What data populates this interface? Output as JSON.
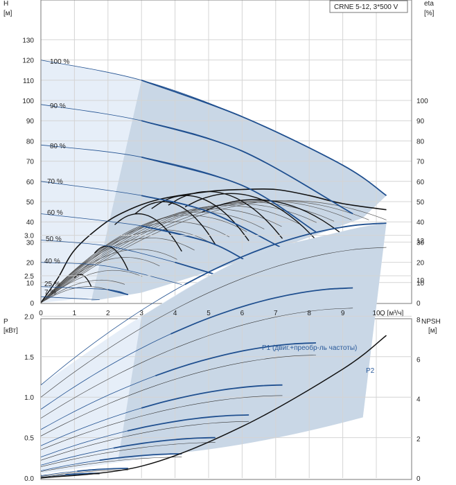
{
  "chart_data": [
    {
      "type": "line",
      "title": "CRNE 5-12, 3*500 V",
      "left_axis": {
        "name": "H",
        "unit": "[м]",
        "range": [
          0,
          140
        ],
        "ticks": [
          "0",
          "10",
          "20",
          "30",
          "40",
          "50",
          "60",
          "70",
          "80",
          "90",
          "100",
          "110",
          "120",
          "130"
        ]
      },
      "right_axis": {
        "name": "eta",
        "unit": "[%]",
        "range": [
          0,
          140
        ],
        "ticks": [
          "0",
          "10",
          "20",
          "30",
          "40",
          "50",
          "60",
          "70",
          "80",
          "90",
          "100"
        ]
      },
      "x_axis": {
        "label": "Q [м³/ч]",
        "range": [
          0,
          11
        ],
        "ticks": [
          "0",
          "1",
          "2",
          "3",
          "4",
          "5",
          "6",
          "7",
          "8",
          "9",
          "10"
        ]
      },
      "grid": true,
      "operating_area_color": "#c9d7e6",
      "extended_area_color": "#e6eef8",
      "curve_color": "#1f4f8f",
      "speed_labels": [
        "100 %",
        "90 %",
        "80 %",
        "70 %",
        "60 %",
        "50 %",
        "40 %",
        "25 %",
        "7 %"
      ],
      "head_curves": [
        {
          "speed": "100 %",
          "points": [
            [
              0,
              120
            ],
            [
              3,
              110
            ],
            [
              6,
              92
            ],
            [
              9,
              68
            ],
            [
              10.3,
              53
            ]
          ]
        },
        {
          "speed": "90 %",
          "points": [
            [
              0,
              98
            ],
            [
              3,
              90
            ],
            [
              6,
              75
            ],
            [
              9.3,
              44
            ]
          ]
        },
        {
          "speed": "80 %",
          "points": [
            [
              0,
              78
            ],
            [
              3,
              72
            ],
            [
              6,
              58
            ],
            [
              8.2,
              35
            ]
          ]
        },
        {
          "speed": "70 %",
          "points": [
            [
              0,
              60
            ],
            [
              3,
              53
            ],
            [
              5,
              45
            ],
            [
              7.2,
              27
            ]
          ]
        },
        {
          "speed": "60 %",
          "points": [
            [
              0,
              44
            ],
            [
              3,
              38
            ],
            [
              5,
              30
            ],
            [
              6.2,
              20
            ]
          ]
        },
        {
          "speed": "50 %",
          "points": [
            [
              0,
              31
            ],
            [
              2,
              28
            ],
            [
              4,
              20
            ],
            [
              5.2,
              14
            ]
          ]
        },
        {
          "speed": "40 %",
          "points": [
            [
              0,
              20
            ],
            [
              2,
              18
            ],
            [
              4.2,
              9
            ]
          ]
        },
        {
          "speed": "25 %",
          "points": [
            [
              0,
              8
            ],
            [
              2,
              6.5
            ],
            [
              2.6,
              4
            ]
          ]
        },
        {
          "speed": "7 %",
          "points": [
            [
              0,
              3
            ],
            [
              1.75,
              1.5
            ]
          ]
        }
      ],
      "efficiency_envelope": [
        [
          0,
          0
        ],
        [
          0.5,
          12
        ],
        [
          1,
          26
        ],
        [
          1.8,
          38
        ],
        [
          2.5,
          45
        ],
        [
          3.5,
          51
        ],
        [
          5,
          55
        ],
        [
          6,
          56
        ],
        [
          7,
          56
        ],
        [
          8,
          53
        ],
        [
          9,
          49
        ],
        [
          10.3,
          46
        ]
      ],
      "efficiency_curves_peak": [
        63,
        63,
        63,
        62,
        61,
        60,
        58,
        56,
        54,
        50,
        45,
        40,
        33,
        28,
        20,
        14,
        10
      ]
    },
    {
      "type": "line",
      "left_axis": {
        "name": "P",
        "unit": "[кВт]",
        "range": [
          0,
          3.25
        ],
        "ticks": [
          "0.0",
          "0.5",
          "1.0",
          "1.5",
          "2.0",
          "2.5",
          "3.0"
        ]
      },
      "right_axis": {
        "name": "NPSH",
        "unit": "[м]",
        "range": [
          0,
          13
        ],
        "ticks": [
          "0",
          "2",
          "4",
          "6",
          "8",
          "10",
          "12"
        ]
      },
      "grid": true,
      "series": [
        {
          "name": "P1 (двиг.+преобр-ль частоты)",
          "points": [
            [
              0,
              1.15
            ],
            [
              3,
              2.0
            ],
            [
              6,
              2.7
            ],
            [
              9,
              3.05
            ],
            [
              10.3,
              3.15
            ]
          ]
        },
        {
          "name": "P2",
          "points": [
            [
              0,
              1.0
            ],
            [
              3,
              1.8
            ],
            [
              6,
              2.45
            ],
            [
              9,
              2.75
            ],
            [
              10.3,
              2.85
            ]
          ]
        }
      ],
      "npsh_points": [
        [
          0,
          0
        ],
        [
          3,
          0.6
        ],
        [
          6,
          2.6
        ],
        [
          9,
          5.5
        ],
        [
          10.3,
          7.2
        ]
      ]
    }
  ]
}
